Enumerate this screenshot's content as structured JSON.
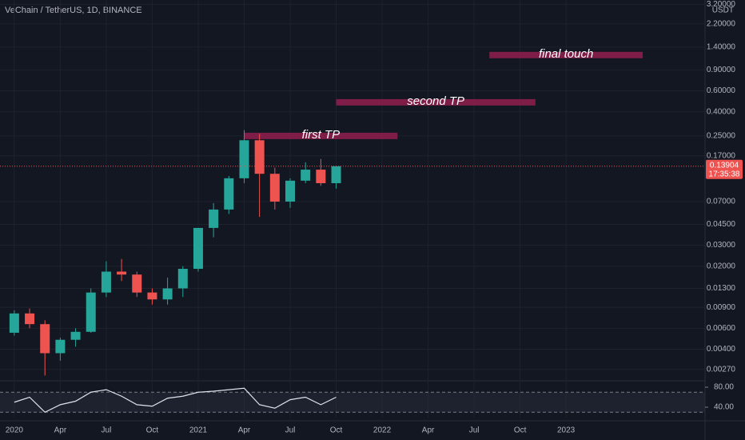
{
  "chart_data": {
    "type": "candlestick",
    "title": "VeChain / TetherUS, 1D, BINANCE",
    "currency": "USDT",
    "log_scale": true,
    "up_color": "#26a69a",
    "down_color": "#ef5350",
    "x": [
      "2020-01",
      "2020-02",
      "2020-03",
      "2020-04",
      "2020-05",
      "2020-06",
      "2020-07",
      "2020-08",
      "2020-09",
      "2020-10",
      "2020-11",
      "2020-12",
      "2021-01",
      "2021-02",
      "2021-03",
      "2021-04",
      "2021-05",
      "2021-06",
      "2021-07",
      "2021-08",
      "2021-09",
      "2021-10"
    ],
    "open": [
      0.0055,
      0.008,
      0.0065,
      0.0037,
      0.0048,
      0.0056,
      0.012,
      0.018,
      0.017,
      0.012,
      0.0105,
      0.013,
      0.019,
      0.042,
      0.06,
      0.11,
      0.23,
      0.12,
      0.07,
      0.105,
      0.13,
      0.1
    ],
    "high": [
      0.0085,
      0.0088,
      0.007,
      0.005,
      0.006,
      0.013,
      0.022,
      0.023,
      0.018,
      0.013,
      0.016,
      0.02,
      0.042,
      0.068,
      0.115,
      0.28,
      0.26,
      0.135,
      0.11,
      0.15,
      0.16,
      0.14
    ],
    "low": [
      0.0052,
      0.006,
      0.0024,
      0.0032,
      0.0042,
      0.0055,
      0.011,
      0.015,
      0.011,
      0.0095,
      0.0095,
      0.011,
      0.018,
      0.035,
      0.055,
      0.1,
      0.052,
      0.06,
      0.062,
      0.1,
      0.095,
      0.09
    ],
    "close": [
      0.008,
      0.0065,
      0.0037,
      0.0048,
      0.0056,
      0.012,
      0.018,
      0.017,
      0.012,
      0.0105,
      0.013,
      0.019,
      0.042,
      0.06,
      0.11,
      0.23,
      0.12,
      0.07,
      0.105,
      0.13,
      0.1,
      0.139
    ],
    "xlim": [
      "2019-12",
      "2023-10"
    ],
    "xticks": [
      {
        "value": "2020-01",
        "label": "2020"
      },
      {
        "value": "2020-04",
        "label": "Apr"
      },
      {
        "value": "2020-07",
        "label": "Jul"
      },
      {
        "value": "2020-10",
        "label": "Oct"
      },
      {
        "value": "2021-01",
        "label": "2021"
      },
      {
        "value": "2021-04",
        "label": "Apr"
      },
      {
        "value": "2021-07",
        "label": "Jul"
      },
      {
        "value": "2021-10",
        "label": "Oct"
      },
      {
        "value": "2022-01",
        "label": "2022"
      },
      {
        "value": "2022-04",
        "label": "Apr"
      },
      {
        "value": "2022-07",
        "label": "Jul"
      },
      {
        "value": "2022-10",
        "label": "Oct"
      },
      {
        "value": "2023-01",
        "label": "2023"
      }
    ],
    "ylim": [
      0.0022,
      3.49
    ],
    "yticks": [
      {
        "value": 3.2,
        "label": "3.20000"
      },
      {
        "value": 2.2,
        "label": "2.20000"
      },
      {
        "value": 1.4,
        "label": "1.40000"
      },
      {
        "value": 0.9,
        "label": "0.90000"
      },
      {
        "value": 0.6,
        "label": "0.60000"
      },
      {
        "value": 0.4,
        "label": "0.40000"
      },
      {
        "value": 0.25,
        "label": "0.25000"
      },
      {
        "value": 0.17,
        "label": "0.17000"
      },
      {
        "value": 0.07,
        "label": "0.07000"
      },
      {
        "value": 0.045,
        "label": "0.04500"
      },
      {
        "value": 0.03,
        "label": "0.03000"
      },
      {
        "value": 0.02,
        "label": "0.02000"
      },
      {
        "value": 0.013,
        "label": "0.01300"
      },
      {
        "value": 0.009,
        "label": "0.00900"
      },
      {
        "value": 0.006,
        "label": "0.00600"
      },
      {
        "value": 0.004,
        "label": "0.00400"
      },
      {
        "value": 0.0027,
        "label": "0.00270"
      }
    ],
    "last_price": {
      "value": 0.13904,
      "label": "0.13904"
    },
    "countdown": "17:35:38",
    "annotations": [
      {
        "text": "first TP",
        "value": 0.25,
        "start": "2021-04",
        "end": "2022-02"
      },
      {
        "text": "second TP",
        "value": 0.48,
        "start": "2021-10",
        "end": "2022-11"
      },
      {
        "text": "final touch",
        "value": 1.2,
        "start": "2022-08",
        "end": "2023-06"
      }
    ],
    "annotation_color": "#8b1e4b",
    "rsi": {
      "values": [
        50,
        60,
        30,
        45,
        52,
        70,
        75,
        62,
        45,
        42,
        58,
        62,
        70,
        72,
        75,
        78,
        45,
        38,
        55,
        60,
        45,
        60
      ],
      "color": "#e0e3eb",
      "ylim": [
        19.2,
        89.6
      ],
      "yticks": [
        {
          "value": 80,
          "label": "80.00"
        },
        {
          "value": 40,
          "label": "40.00"
        }
      ],
      "bands": [
        30,
        70
      ]
    }
  }
}
